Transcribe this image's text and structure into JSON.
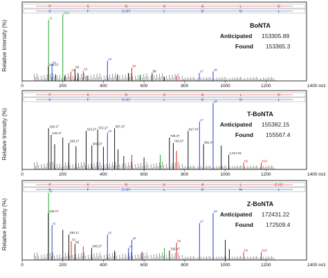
{
  "chart_data": [
    {
      "type": "bar",
      "name": "bonta",
      "ylabel": "Relative Intensity (%)",
      "xlim": [
        0,
        1400
      ],
      "xticks": [
        0,
        200,
        400,
        600,
        800,
        1000,
        1200
      ],
      "x_unit_label": "1400 m/z",
      "info": {
        "name": "BoNTA",
        "anticipated_label": "Anticipated",
        "anticipated": "153305.89",
        "found_label": "Found",
        "found": "153365.3"
      },
      "sequence_top": [
        "P",
        "K",
        "N",
        "K",
        "A",
        "L",
        "D"
      ],
      "sequence_bottom": [
        "K",
        "F",
        "C+57",
        "L",
        "D",
        "N",
        "L"
      ],
      "peaks": [
        {
          "x": 130,
          "y": 92,
          "c": "green",
          "label": "y1",
          "labelColor": "green"
        },
        {
          "x": 200,
          "y": 100,
          "c": "green",
          "label": "y*y1",
          "labelColor": "green"
        },
        {
          "x": 129,
          "y": 22,
          "c": "black",
          "label": "129.17"
        },
        {
          "x": 147,
          "y": 25,
          "c": "blue",
          "label": "b1"
        },
        {
          "x": 165,
          "y": 10,
          "c": "black"
        },
        {
          "x": 210,
          "y": 8,
          "c": "black"
        },
        {
          "x": 240,
          "y": 14,
          "c": "red",
          "label": "y2"
        },
        {
          "x": 260,
          "y": 18,
          "c": "black",
          "label": "b2"
        },
        {
          "x": 275,
          "y": 12,
          "c": "black"
        },
        {
          "x": 301,
          "y": 15,
          "c": "red",
          "label": "b3"
        },
        {
          "x": 320,
          "y": 8,
          "c": "black"
        },
        {
          "x": 420,
          "y": 30,
          "c": "blue",
          "label": "y3"
        },
        {
          "x": 470,
          "y": 10,
          "c": "black"
        },
        {
          "x": 524,
          "y": 12,
          "c": "black"
        },
        {
          "x": 540,
          "y": 20,
          "c": "red",
          "label": "b5"
        },
        {
          "x": 580,
          "y": 9,
          "c": "green"
        },
        {
          "x": 640,
          "y": 12,
          "c": "black",
          "label": "b6"
        },
        {
          "x": 700,
          "y": 6,
          "c": "black"
        },
        {
          "x": 760,
          "y": 8,
          "c": "red"
        },
        {
          "x": 872,
          "y": 12,
          "c": "blue",
          "label": "y7"
        },
        {
          "x": 940,
          "y": 14,
          "c": "blue",
          "label": "y8"
        }
      ]
    },
    {
      "type": "bar",
      "name": "t-bonta",
      "ylabel": "Relative Intensity (%)",
      "xlim": [
        0,
        1400
      ],
      "xticks": [
        0,
        200,
        400,
        600,
        800,
        1000,
        1200
      ],
      "x_unit_label": "1400 m/z",
      "info": {
        "name": "T-BoNTA",
        "anticipated_label": "Anticipated",
        "anticipated": "155382.15",
        "found_label": "Found",
        "found": "155567.4"
      },
      "sequence_top": [
        "P",
        "K",
        "N",
        "K",
        "A",
        "L",
        "D"
      ],
      "sequence_bottom": [
        "K",
        "F",
        "C+57",
        "L",
        "D",
        "N",
        "L"
      ],
      "peaks": [
        {
          "x": 130,
          "y": 62,
          "c": "black",
          "label": "129.17"
        },
        {
          "x": 143,
          "y": 52,
          "c": "black",
          "label": "143.17"
        },
        {
          "x": 160,
          "y": 38,
          "c": "black"
        },
        {
          "x": 200,
          "y": 48,
          "c": "black"
        },
        {
          "x": 230,
          "y": 40,
          "c": "black",
          "label": "230.17"
        },
        {
          "x": 265,
          "y": 35,
          "c": "black"
        },
        {
          "x": 315,
          "y": 58,
          "c": "black",
          "label": "313.27"
        },
        {
          "x": 343,
          "y": 36,
          "c": "black",
          "label": "343.27"
        },
        {
          "x": 372,
          "y": 60,
          "c": "black",
          "label": "372.27"
        },
        {
          "x": 400,
          "y": 34,
          "c": "black"
        },
        {
          "x": 420,
          "y": 55,
          "c": "blue",
          "label": "y3"
        },
        {
          "x": 455,
          "y": 62,
          "c": "black",
          "label": "457.27"
        },
        {
          "x": 472,
          "y": 30,
          "c": "black"
        },
        {
          "x": 500,
          "y": 20,
          "c": "black"
        },
        {
          "x": 540,
          "y": 22,
          "c": "red"
        },
        {
          "x": 600,
          "y": 18,
          "c": "black"
        },
        {
          "x": 680,
          "y": 22,
          "c": "green"
        },
        {
          "x": 725,
          "y": 48,
          "c": "black",
          "label": "725.47"
        },
        {
          "x": 744,
          "y": 40,
          "c": "black",
          "label": "743.37"
        },
        {
          "x": 760,
          "y": 28,
          "c": "red"
        },
        {
          "x": 817,
          "y": 58,
          "c": "black",
          "label": "817.47"
        },
        {
          "x": 873,
          "y": 72,
          "c": "blue",
          "label": "y7"
        },
        {
          "x": 893,
          "y": 38,
          "c": "black",
          "label": "891.47"
        },
        {
          "x": 940,
          "y": 100,
          "c": "blue",
          "label": "y8"
        },
        {
          "x": 980,
          "y": 36,
          "c": "black"
        },
        {
          "x": 1017,
          "y": 22,
          "c": "black",
          "label": "1,017.51"
        },
        {
          "x": 1090,
          "y": 10,
          "c": "red",
          "label": "b9"
        },
        {
          "x": 1177,
          "y": 10,
          "c": "red",
          "label": "b10"
        }
      ]
    },
    {
      "type": "bar",
      "name": "z-bonta",
      "ylabel": "Relative Intensity (%)",
      "xlim": [
        0,
        1400
      ],
      "xticks": [
        0,
        200,
        400,
        600,
        800,
        1000,
        1200
      ],
      "x_unit_label": "1400 m/z",
      "info": {
        "name": "Z-BoNTA",
        "anticipated_label": "Anticipated",
        "anticipated": "172431.22",
        "found_label": "Found",
        "found": "172509.4"
      },
      "sequence_top": [
        "P",
        "K",
        "N",
        "K",
        "A",
        "L",
        "C+57"
      ],
      "sequence_bottom": [
        "K",
        "F",
        "C+57",
        "L",
        "D",
        "N",
        "L"
      ],
      "peaks": [
        {
          "x": 130,
          "y": 100,
          "c": "green",
          "label": "y1",
          "labelColor": "green"
        },
        {
          "x": 129,
          "y": 70,
          "c": "black",
          "label": "129.17"
        },
        {
          "x": 147,
          "y": 52,
          "c": "blue",
          "label": "y1"
        },
        {
          "x": 200,
          "y": 45,
          "c": "black"
        },
        {
          "x": 230,
          "y": 38,
          "c": "black",
          "label": "230.17"
        },
        {
          "x": 242,
          "y": 28,
          "c": "red",
          "label": "b2"
        },
        {
          "x": 260,
          "y": 24,
          "c": "black",
          "label": "b2"
        },
        {
          "x": 301,
          "y": 20,
          "c": "red"
        },
        {
          "x": 342,
          "y": 18,
          "c": "black",
          "label": "343.27"
        },
        {
          "x": 420,
          "y": 38,
          "c": "blue",
          "label": "y3"
        },
        {
          "x": 455,
          "y": 14,
          "c": "black"
        },
        {
          "x": 524,
          "y": 18,
          "c": "blue",
          "label": "y4"
        },
        {
          "x": 540,
          "y": 30,
          "c": "blue",
          "label": "y5"
        },
        {
          "x": 590,
          "y": 12,
          "c": "black"
        },
        {
          "x": 700,
          "y": 18,
          "c": "green"
        },
        {
          "x": 725,
          "y": 14,
          "c": "black",
          "label": "725.47"
        },
        {
          "x": 760,
          "y": 26,
          "c": "red",
          "label": "b6"
        },
        {
          "x": 873,
          "y": 55,
          "c": "blue",
          "label": "y7"
        },
        {
          "x": 940,
          "y": 70,
          "c": "blue",
          "label": "y8"
        },
        {
          "x": 1000,
          "y": 30,
          "c": "black"
        },
        {
          "x": 1020,
          "y": 16,
          "c": "black"
        },
        {
          "x": 1090,
          "y": 12,
          "c": "red",
          "label": "b9"
        },
        {
          "x": 1177,
          "y": 12,
          "c": "red",
          "label": "b10"
        }
      ]
    }
  ],
  "colors": {
    "blue": "#1f3fd0",
    "red": "#e02020",
    "green": "#22a02a",
    "black": "#111111",
    "seqbox": "#999999"
  }
}
